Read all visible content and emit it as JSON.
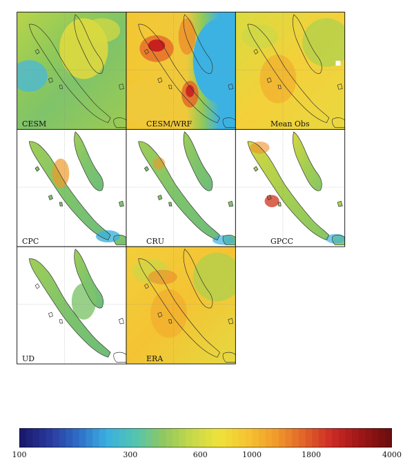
{
  "panels": [
    {
      "id": "cesm",
      "label": "CESM",
      "field": "green-smooth"
    },
    {
      "id": "cesm-wrf",
      "label": "CESM/WRF",
      "field": "wrf"
    },
    {
      "id": "mean-obs",
      "label": "Mean Obs",
      "field": "yellow-full"
    },
    {
      "id": "cpc",
      "label": "CPC",
      "field": "land-cpc"
    },
    {
      "id": "cru",
      "label": "CRU",
      "field": "land-cru"
    },
    {
      "id": "gpcc",
      "label": "GPCC",
      "field": "land-gpcc"
    },
    {
      "id": "ud",
      "label": "UD",
      "field": "land-ud"
    },
    {
      "id": "era",
      "label": "ERA",
      "field": "yellow-full-era"
    }
  ],
  "colorbar": {
    "scale": "log",
    "ticks": [
      "100",
      "300",
      "600",
      "1000",
      "1800",
      "4000"
    ],
    "colors": [
      "#1a1a6e",
      "#2a3a9e",
      "#2f6fc9",
      "#3ab0e0",
      "#54c4b0",
      "#8fc860",
      "#c6d94a",
      "#f0e23a",
      "#f6c331",
      "#f09a2b",
      "#e2622a",
      "#cc2a26",
      "#9e1616",
      "#6e0e0e"
    ]
  },
  "colors": {
    "land-outline": "#333333",
    "border": "#000000",
    "gridline": "#888888"
  }
}
